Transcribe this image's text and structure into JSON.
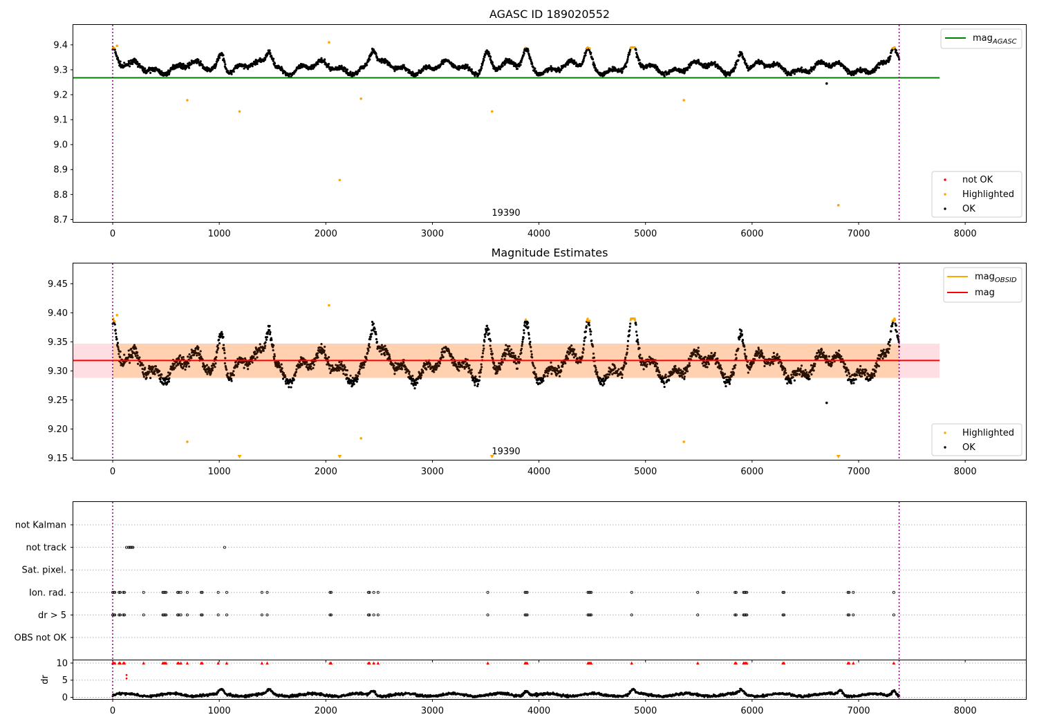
{
  "chart_data": [
    {
      "type": "scatter",
      "title": "AGASC ID 189020552",
      "xlabel": "",
      "ylabel": "",
      "xlim": [
        -370,
        8570
      ],
      "ylim": [
        8.69,
        9.48
      ],
      "xticks": [
        0,
        1000,
        2000,
        3000,
        4000,
        5000,
        6000,
        7000,
        8000
      ],
      "yticks": [
        8.7,
        8.8,
        8.9,
        9.0,
        9.1,
        9.2,
        9.3,
        9.4
      ],
      "ytick_labels": [
        "8.7",
        "8.8",
        "8.9",
        "9.0",
        "9.1",
        "9.2",
        "9.3",
        "9.4"
      ],
      "vlines": [
        0,
        7380
      ],
      "annotation": {
        "text": "19390",
        "x": 3560,
        "y": 8.715
      },
      "reference_line": {
        "name": "mag",
        "subscript": "AGASC",
        "y": 9.268,
        "x_range": [
          -370,
          7760
        ],
        "color": "#008000"
      },
      "legend_lines": [
        {
          "name": "mag",
          "subscript": "AGASC",
          "color": "#008000"
        }
      ],
      "legend_points": [
        {
          "name": "not OK",
          "color": "#ff0000"
        },
        {
          "name": "Highlighted",
          "color": "#ffa500"
        },
        {
          "name": "OK",
          "color": "#000000"
        }
      ],
      "base_level": 0.0,
      "highlighted_points": [
        {
          "x": 700,
          "y": 9.178
        },
        {
          "x": 1190,
          "y": 9.133
        },
        {
          "x": 2130,
          "y": 8.858
        },
        {
          "x": 2330,
          "y": 9.184
        },
        {
          "x": 3560,
          "y": 9.133
        },
        {
          "x": 5360,
          "y": 9.178
        },
        {
          "x": 6810,
          "y": 8.757
        },
        {
          "x": 2030,
          "y": 9.41
        },
        {
          "x": 40,
          "y": 9.396
        }
      ],
      "outliers": [
        {
          "x": 6700,
          "y": 9.245
        }
      ],
      "series": [
        {
          "name": "OK",
          "mean": 9.318,
          "x_range": [
            0,
            7380
          ],
          "min": 9.26,
          "max": 9.39
        }
      ]
    },
    {
      "type": "scatter",
      "title": "Magnitude Estimates",
      "xlabel": "",
      "ylabel": "",
      "xlim": [
        -370,
        8570
      ],
      "ylim": [
        9.147,
        9.485
      ],
      "xticks": [
        0,
        1000,
        2000,
        3000,
        4000,
        5000,
        6000,
        7000,
        8000
      ],
      "yticks": [
        9.15,
        9.2,
        9.25,
        9.3,
        9.35,
        9.4,
        9.45
      ],
      "ytick_labels": [
        "9.15",
        "9.20",
        "9.25",
        "9.30",
        "9.35",
        "9.40",
        "9.45"
      ],
      "vlines": [
        0,
        7380
      ],
      "annotation": {
        "text": "19390",
        "x": 3560,
        "y": 9.155
      },
      "reference_line": {
        "name": "mag",
        "y": 9.318,
        "x_range": [
          -370,
          7760
        ],
        "color": "#ff0000"
      },
      "band": {
        "y_range": [
          9.288,
          9.347
        ],
        "x_range": [
          -370,
          7760
        ]
      },
      "legend_lines": [
        {
          "name": "mag",
          "subscript": "OBSID",
          "color": "#ffa500"
        },
        {
          "name": "mag",
          "subscript": "",
          "color": "#ff0000"
        }
      ],
      "legend_points": [
        {
          "name": "Highlighted",
          "color": "#ffa500"
        },
        {
          "name": "OK",
          "color": "#000000"
        }
      ],
      "base_level": 0.0,
      "highlighted_points": [
        {
          "x": 700,
          "y": 9.178
        },
        {
          "x": 2330,
          "y": 9.184
        },
        {
          "x": 5360,
          "y": 9.178
        },
        {
          "x": 2030,
          "y": 9.413
        },
        {
          "x": 40,
          "y": 9.396
        }
      ],
      "clipped_markers": [
        {
          "x": 1190
        },
        {
          "x": 2130
        },
        {
          "x": 3560
        },
        {
          "x": 6810
        }
      ],
      "outliers": [
        {
          "x": 6700,
          "y": 9.245
        }
      ],
      "series": [
        {
          "name": "OK",
          "mean": 9.318,
          "x_range": [
            0,
            7380
          ],
          "min": 9.255,
          "max": 9.39
        }
      ]
    },
    {
      "type": "scatter",
      "title": "",
      "xlabel": "",
      "ylabel": "",
      "xlim": [
        -370,
        8570
      ],
      "xticks": [
        0,
        1000,
        2000,
        3000,
        4000,
        5000,
        6000,
        7000,
        8000
      ],
      "vlines": [
        0,
        7380
      ],
      "flag_rows": [
        "not Kalman",
        "not track",
        "Sat. pixel.",
        "Ion. rad.",
        "dr > 5",
        "OBS not OK"
      ],
      "flag_events": {
        "not track": [
          130,
          150,
          160,
          170,
          180,
          190,
          1050
        ],
        "Ion. rad.": [
          0,
          10,
          20,
          60,
          70,
          100,
          110,
          290,
          470,
          480,
          490,
          500,
          610,
          620,
          640,
          700,
          830,
          840,
          990,
          1070,
          1400,
          1450,
          2040,
          2050,
          2400,
          2410,
          2450,
          2490,
          3520,
          3870,
          3880,
          3890,
          4460,
          4470,
          4480,
          4490,
          4870,
          5490,
          5840,
          5850,
          5920,
          5930,
          5940,
          5950,
          6290,
          6300,
          6900,
          6910,
          6950,
          7330
        ],
        "dr > 5": [
          0,
          10,
          20,
          60,
          70,
          100,
          110,
          290,
          470,
          480,
          490,
          500,
          610,
          620,
          640,
          700,
          830,
          840,
          990,
          1070,
          1400,
          1450,
          2040,
          2050,
          2400,
          2410,
          2450,
          2490,
          3520,
          3870,
          3880,
          3890,
          4460,
          4470,
          4480,
          4490,
          4870,
          5490,
          5840,
          5850,
          5920,
          5930,
          5940,
          5950,
          6290,
          6300,
          6900,
          6910,
          6950,
          7330
        ]
      }
    },
    {
      "type": "scatter",
      "title": "",
      "xlabel": "",
      "ylabel": "dr",
      "xlim": [
        -370,
        8570
      ],
      "ylim": [
        -0.5,
        10.8
      ],
      "xticks": [
        0,
        1000,
        2000,
        3000,
        4000,
        5000,
        6000,
        7000,
        8000
      ],
      "yticks": [
        0,
        5,
        10
      ],
      "ytick_labels": [
        "0",
        "5",
        "10"
      ],
      "vlines": [
        0,
        7380
      ],
      "clipped_value": 10,
      "high_dr_points": [
        {
          "x": 130,
          "y": 6.5
        },
        {
          "x": 130,
          "y": 5.5
        }
      ],
      "series": [
        {
          "name": "dr",
          "mean": 0.7,
          "x_range": [
            0,
            7380
          ],
          "min": 0,
          "max": 2.6
        }
      ]
    }
  ]
}
